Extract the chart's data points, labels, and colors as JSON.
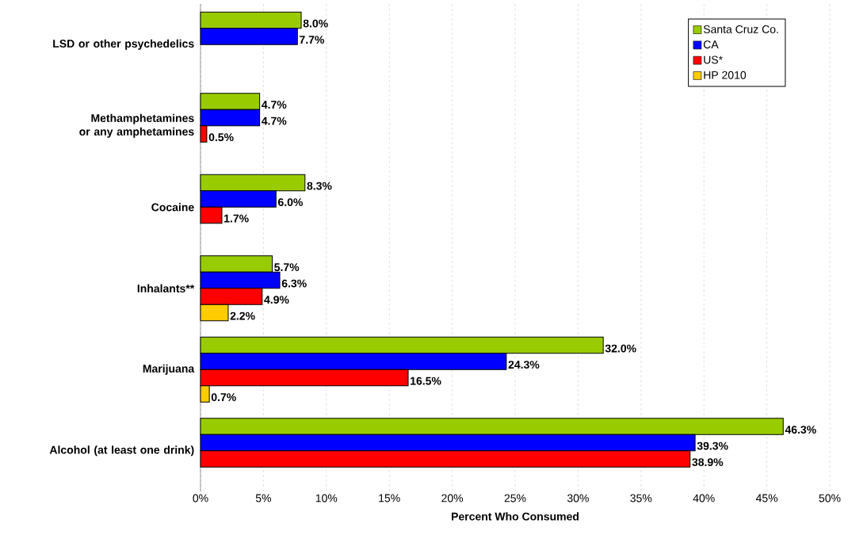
{
  "chart_data": {
    "type": "bar",
    "orientation": "horizontal",
    "xlabel": "Percent Who Consumed",
    "categories": [
      "LSD or other psychedelics",
      "Methamphetamines or any amphetamines",
      "Cocaine",
      "Inhalants**",
      "Marijuana",
      "Alcohol (at least one drink)"
    ],
    "series": [
      {
        "name": "Santa Cruz Co.",
        "color": "#99cc00",
        "values": [
          8.0,
          4.7,
          8.3,
          5.7,
          32.0,
          46.3
        ],
        "value_labels": [
          "8.0%",
          "4.7%",
          "8.3%",
          "5.7%",
          "32.0%",
          "46.3%"
        ]
      },
      {
        "name": "CA",
        "color": "#0000ff",
        "values": [
          7.7,
          4.7,
          6.0,
          6.3,
          24.3,
          39.3
        ],
        "value_labels": [
          "7.7%",
          "4.7%",
          "6.0%",
          "6.3%",
          "24.3%",
          "39.3%"
        ]
      },
      {
        "name": "US*",
        "color": "#ff0000",
        "values": [
          null,
          0.5,
          1.7,
          4.9,
          16.5,
          38.9
        ],
        "value_labels": [
          null,
          "0.5%",
          "1.7%",
          "4.9%",
          "16.5%",
          "38.9%"
        ]
      },
      {
        "name": "HP 2010",
        "color": "#ffcc00",
        "values": [
          null,
          null,
          null,
          2.2,
          0.7,
          null
        ],
        "value_labels": [
          null,
          null,
          null,
          "2.2%",
          "0.7%",
          null
        ]
      }
    ],
    "xlim": [
      0,
      50
    ],
    "xticks": [
      {
        "value": 0,
        "label": "0%"
      },
      {
        "value": 5,
        "label": "5%"
      },
      {
        "value": 10,
        "label": "10%"
      },
      {
        "value": 15,
        "label": "15%"
      },
      {
        "value": 20,
        "label": "20%"
      },
      {
        "value": 25,
        "label": "25%"
      },
      {
        "value": 30,
        "label": "30%"
      },
      {
        "value": 35,
        "label": "35%"
      },
      {
        "value": 40,
        "label": "40%"
      },
      {
        "value": 45,
        "label": "45%"
      },
      {
        "value": 50,
        "label": "50%"
      }
    ],
    "grid": "x",
    "legend": "top right"
  }
}
